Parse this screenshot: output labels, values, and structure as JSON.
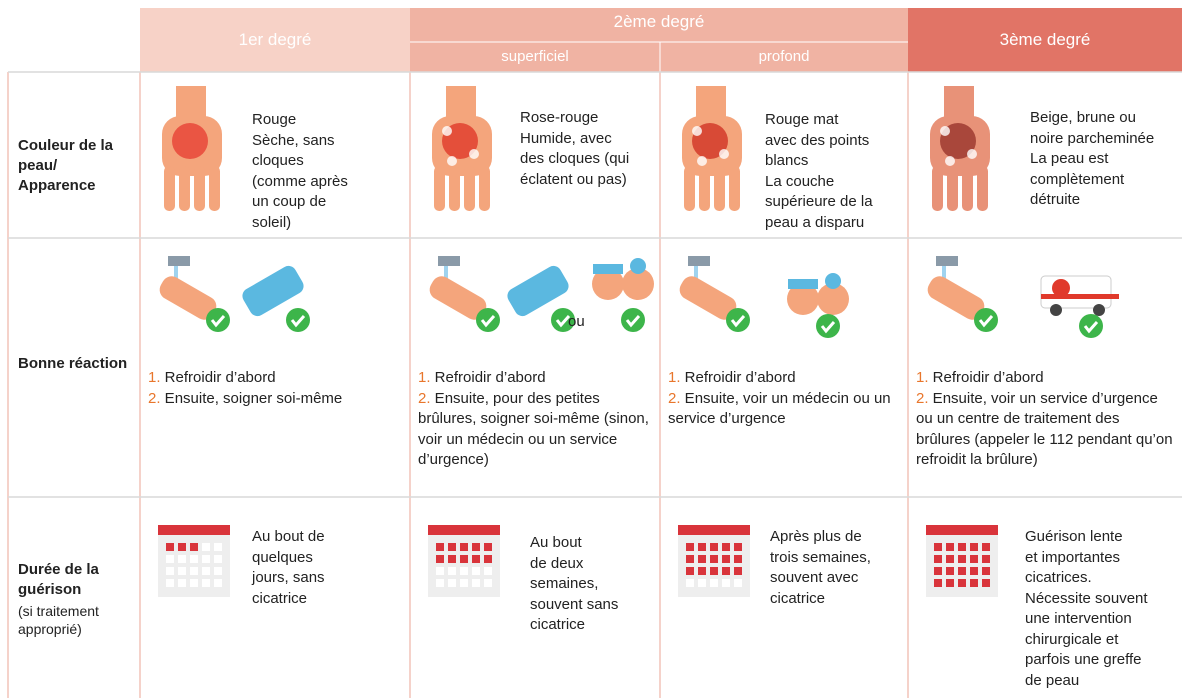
{
  "header": {
    "degrees": [
      "1er degré",
      "2ème degré",
      "3ème degré"
    ],
    "subdegrees": [
      "superficiel",
      "profond"
    ]
  },
  "rows": [
    {
      "label": "Couleur de la peau/ Apparence",
      "cells": [
        {
          "lines": [
            "Rouge",
            "Sèche, sans",
            "cloques",
            "(comme après",
            "un coup de",
            "soleil)"
          ]
        },
        {
          "lines": [
            "Rose-rouge",
            "Humide, avec",
            "des cloques (qui",
            "éclatent ou pas)"
          ]
        },
        {
          "lines": [
            "Rouge mat",
            "avec des points",
            "blancs",
            "La couche",
            "supérieure de la",
            "peau a disparu"
          ]
        },
        {
          "lines": [
            "Beige, brune ou",
            "noire parcheminée",
            "La peau est",
            "complètement",
            "détruite"
          ]
        }
      ]
    },
    {
      "label": "Bonne réaction",
      "or": "ou",
      "cells": [
        {
          "steps": [
            {
              "n": "1.",
              "text": "Refroidir d’abord"
            },
            {
              "n": "2.",
              "text": "Ensuite, soigner soi-même"
            }
          ]
        },
        {
          "steps": [
            {
              "n": "1.",
              "text": "Refroidir d’abord"
            },
            {
              "n": "2.",
              "text": "Ensuite, pour des petites brûlures, soigner soi-même (sinon, voir un médecin ou un service d’urgence)"
            }
          ]
        },
        {
          "steps": [
            {
              "n": "1.",
              "text": "Refroidir d’abord"
            },
            {
              "n": "2.",
              "text": "Ensuite, voir un médecin ou un service d’urgence"
            }
          ]
        },
        {
          "steps": [
            {
              "n": "1.",
              "text": "Refroidir d’abord"
            },
            {
              "n": "2.",
              "text": "Ensuite, voir un service d’urgence ou un centre de traitement des brûlures (appeler le 112 pendant qu’on refroidit la brûlure)"
            }
          ]
        }
      ]
    },
    {
      "label": "Durée de la guérison",
      "note": "(si traitement approprié)",
      "cells": [
        {
          "lines": [
            "Au bout de",
            "quelques",
            "jours, sans",
            "cicatrice"
          ]
        },
        {
          "lines": [
            "Au bout",
            "de deux",
            "semaines,",
            "souvent sans",
            "cicatrice"
          ]
        },
        {
          "lines": [
            "Après plus de",
            "trois semaines,",
            "souvent avec",
            "cicatrice"
          ]
        },
        {
          "lines": [
            "Guérison lente",
            "et importantes",
            "cicatrices.",
            "Nécessite souvent",
            "une intervention",
            "chirurgicale et",
            "parfois une greffe",
            "de peau"
          ]
        }
      ]
    }
  ]
}
